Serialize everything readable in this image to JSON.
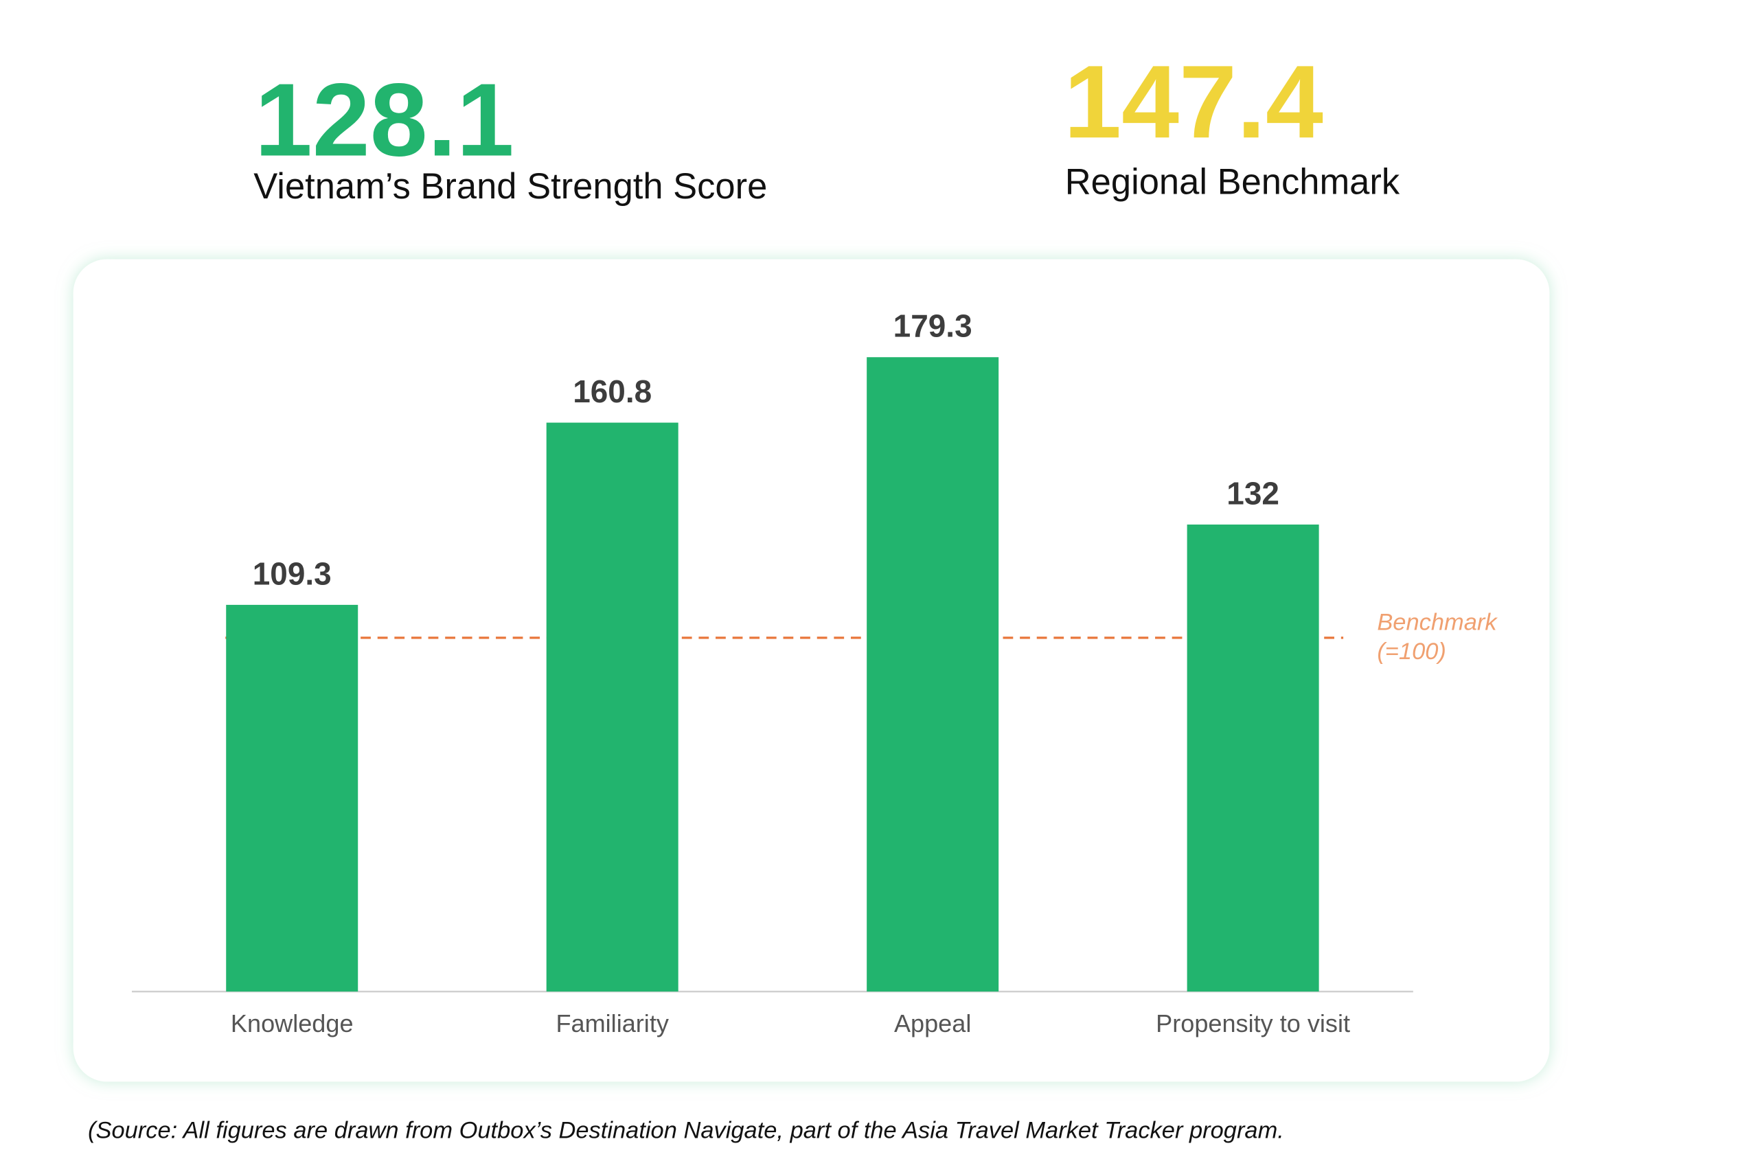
{
  "chart_data": {
    "type": "bar",
    "headline": {
      "value": "128.1",
      "label": "Vietnam’s Brand Strength Score",
      "color": "#22b46e"
    },
    "benchmark_headline": {
      "value": "147.4",
      "label": "Regional Benchmark",
      "color": "#f0d43a"
    },
    "categories": [
      "Knowledge",
      "Familiarity",
      "Appeal",
      "Propensity to visit"
    ],
    "values": [
      109.3,
      160.8,
      179.3,
      132
    ],
    "color": "#22b46e",
    "ylim": [
      0,
      200
    ],
    "benchmark": {
      "value": 100,
      "label": [
        "Benchmark",
        "(=100)"
      ],
      "color": "#e8763a"
    },
    "source": "(Source: All figures are drawn from Outbox’s Destination Navigate, part of the Asia Travel Market Tracker program."
  }
}
